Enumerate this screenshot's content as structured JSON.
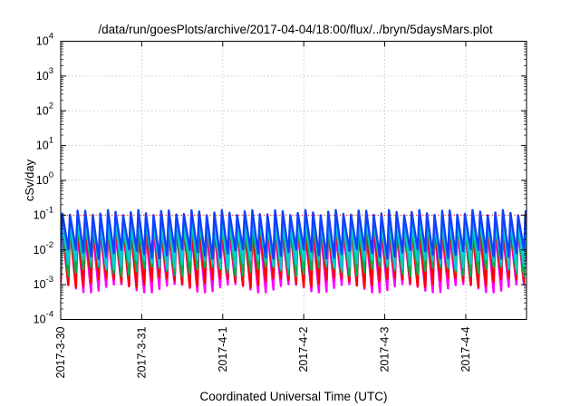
{
  "chart_data": {
    "type": "line",
    "title": "/data/run/goesPlots/archive/2017-04-04/18:00/flux/../bryn/5daysMars.plot",
    "xlabel": "Coordinated Universal Time (UTC)",
    "ylabel": "cSv/day",
    "yscale": "log",
    "ylim": [
      0.0001,
      10000
    ],
    "xlim": [
      "2017-03-30T00:00",
      "2017-04-04T18:00"
    ],
    "grid": true,
    "legend": "none",
    "y_ticks": [
      {
        "value": 0.0001,
        "base": "10",
        "exp": "-4"
      },
      {
        "value": 0.001,
        "base": "10",
        "exp": "-3"
      },
      {
        "value": 0.01,
        "base": "10",
        "exp": "-2"
      },
      {
        "value": 0.1,
        "base": "10",
        "exp": "-1"
      },
      {
        "value": 1,
        "base": "10",
        "exp": "0"
      },
      {
        "value": 10,
        "base": "10",
        "exp": "1"
      },
      {
        "value": 100,
        "base": "10",
        "exp": "2"
      },
      {
        "value": 1000,
        "base": "10",
        "exp": "3"
      },
      {
        "value": 10000,
        "base": "10",
        "exp": "4"
      }
    ],
    "x_ticks": [
      {
        "value": "2017-03-30T00:00",
        "label": "2017-3-30"
      },
      {
        "value": "2017-03-31T00:00",
        "label": "2017-3-31"
      },
      {
        "value": "2017-04-01T00:00",
        "label": "2017-4-1"
      },
      {
        "value": "2017-04-02T00:00",
        "label": "2017-4-2"
      },
      {
        "value": "2017-04-03T00:00",
        "label": "2017-4-3"
      },
      {
        "value": "2017-04-04T00:00",
        "label": "2017-4-4"
      }
    ],
    "reference_line": {
      "value": 0.1,
      "color": "#ff0000",
      "style": "dotted"
    },
    "series": [
      {
        "color": "#ff00ff",
        "peak": 0.035,
        "trough": 0.0008
      },
      {
        "color": "#ff0000",
        "peak": 0.05,
        "trough": 0.0012
      },
      {
        "color": "#00b050",
        "peak": 0.06,
        "trough": 0.0025
      },
      {
        "color": "#00ced1",
        "peak": 0.065,
        "trough": 0.004
      },
      {
        "color": "#1040ff",
        "peak": 0.12,
        "trough": 0.008
      }
    ],
    "cycle_hours": 2.25,
    "series_note": "sawtooth pattern repeating across the whole 5-day range"
  }
}
